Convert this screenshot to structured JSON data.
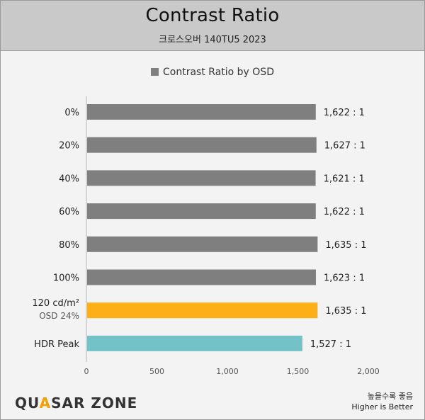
{
  "header": {
    "title": "Contrast Ratio",
    "subtitle": "크로스오버 140TU5 2023"
  },
  "footer": {
    "logo_main": "QUASAR ZONE",
    "note_ko": "높을수록 좋음",
    "note_en": "Higher is Better"
  },
  "colors": {
    "default_bar": "#7f7f7f",
    "highlight_bar": "#fcaf17",
    "hdr_bar": "#72c2c7"
  },
  "chart_data": {
    "type": "bar",
    "orientation": "horizontal",
    "title": "Contrast Ratio",
    "subtitle": "크로스오버 140TU5 2023",
    "categories": [
      "0%",
      "20%",
      "40%",
      "60%",
      "80%",
      "100%",
      "120 cd/m²",
      "HDR Peak"
    ],
    "category_sublabels": [
      "",
      "",
      "",
      "",
      "",
      "",
      "OSD 24%",
      ""
    ],
    "series": [
      {
        "name": "Contrast Ratio by OSD",
        "values": [
          1622,
          1627,
          1621,
          1622,
          1635,
          1623,
          1635,
          1527
        ],
        "labels": [
          "1,622 : 1",
          "1,627 : 1",
          "1,621 : 1",
          "1,622 : 1",
          "1,635 : 1",
          "1,623 : 1",
          "1,635 : 1",
          "1,527 : 1"
        ],
        "bar_colors": [
          "#7f7f7f",
          "#7f7f7f",
          "#7f7f7f",
          "#7f7f7f",
          "#7f7f7f",
          "#7f7f7f",
          "#fcaf17",
          "#72c2c7"
        ]
      }
    ],
    "xlim": [
      0,
      2000
    ],
    "xticks": [
      0,
      500,
      1000,
      1500,
      2000
    ],
    "xtick_labels": [
      "0",
      "500",
      "1,000",
      "1,500",
      "2,000"
    ],
    "legend": {
      "placement": "top-center"
    },
    "grid": false
  }
}
